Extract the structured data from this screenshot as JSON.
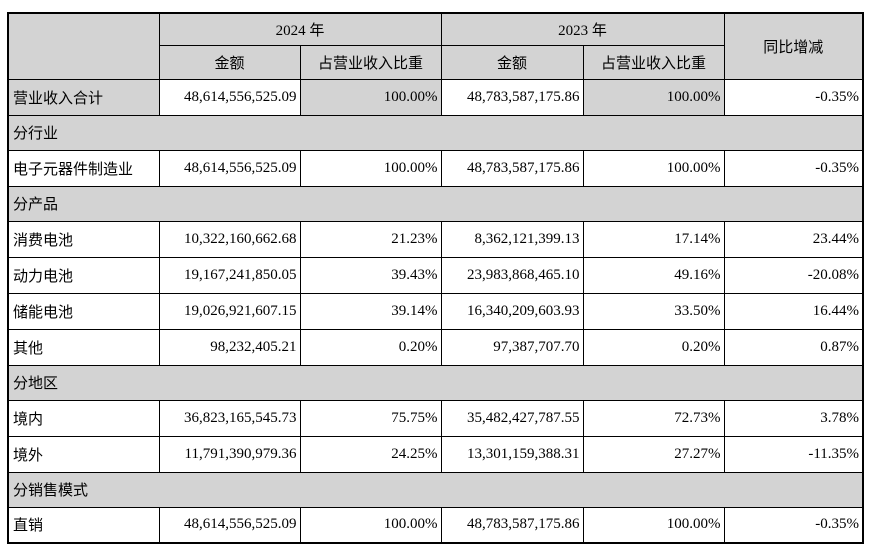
{
  "table": {
    "header": {
      "corner": "",
      "year_2024": "2024 年",
      "year_2023": "2023 年",
      "amount_label": "金额",
      "ratio_label": "占营业收入比重",
      "yoy_label": "同比增减"
    },
    "rows": [
      {
        "type": "data",
        "shaded": true,
        "label": "营业收入合计",
        "amount_2024": "48,614,556,525.09",
        "ratio_2024": "100.00%",
        "amount_2023": "48,783,587,175.86",
        "ratio_2023": "100.00%",
        "yoy": "-0.35%"
      },
      {
        "type": "section",
        "label": "分行业"
      },
      {
        "type": "data",
        "shaded": false,
        "label": "电子元器件制造业",
        "amount_2024": "48,614,556,525.09",
        "ratio_2024": "100.00%",
        "amount_2023": "48,783,587,175.86",
        "ratio_2023": "100.00%",
        "yoy": "-0.35%"
      },
      {
        "type": "section",
        "label": "分产品"
      },
      {
        "type": "data",
        "shaded": false,
        "label": "消费电池",
        "amount_2024": "10,322,160,662.68",
        "ratio_2024": "21.23%",
        "amount_2023": "8,362,121,399.13",
        "ratio_2023": "17.14%",
        "yoy": "23.44%"
      },
      {
        "type": "data",
        "shaded": false,
        "label": "动力电池",
        "amount_2024": "19,167,241,850.05",
        "ratio_2024": "39.43%",
        "amount_2023": "23,983,868,465.10",
        "ratio_2023": "49.16%",
        "yoy": "-20.08%"
      },
      {
        "type": "data",
        "shaded": false,
        "label": "储能电池",
        "amount_2024": "19,026,921,607.15",
        "ratio_2024": "39.14%",
        "amount_2023": "16,340,209,603.93",
        "ratio_2023": "33.50%",
        "yoy": "16.44%"
      },
      {
        "type": "data",
        "shaded": false,
        "label": "其他",
        "amount_2024": "98,232,405.21",
        "ratio_2024": "0.20%",
        "amount_2023": "97,387,707.70",
        "ratio_2023": "0.20%",
        "yoy": "0.87%"
      },
      {
        "type": "section",
        "label": "分地区"
      },
      {
        "type": "data",
        "shaded": false,
        "label": "境内",
        "amount_2024": "36,823,165,545.73",
        "ratio_2024": "75.75%",
        "amount_2023": "35,482,427,787.55",
        "ratio_2023": "72.73%",
        "yoy": "3.78%"
      },
      {
        "type": "data",
        "shaded": false,
        "label": "境外",
        "amount_2024": "11,791,390,979.36",
        "ratio_2024": "24.25%",
        "amount_2023": "13,301,159,388.31",
        "ratio_2023": "27.27%",
        "yoy": "-11.35%"
      },
      {
        "type": "section",
        "label": "分销售模式"
      },
      {
        "type": "data",
        "shaded": false,
        "label": "直销",
        "amount_2024": "48,614,556,525.09",
        "ratio_2024": "100.00%",
        "amount_2023": "48,783,587,175.86",
        "ratio_2023": "100.00%",
        "yoy": "-0.35%"
      }
    ],
    "colors": {
      "shaded_bg": "#d3d3d3",
      "border": "#000000",
      "text": "#000000",
      "page_bg": "#ffffff"
    }
  }
}
